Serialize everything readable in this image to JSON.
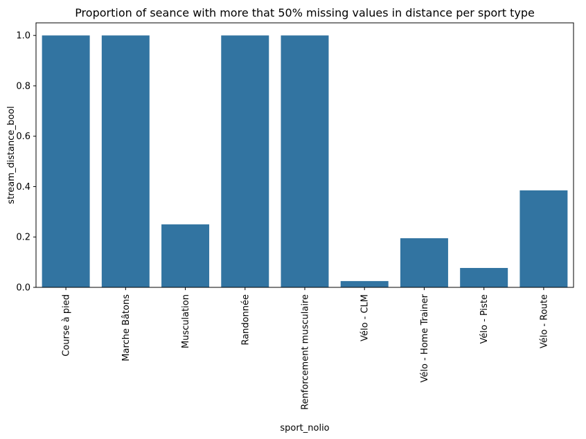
{
  "chart_data": {
    "type": "bar",
    "title": "Proportion of seance with more that 50% missing values in distance per sport type",
    "xlabel": "sport_nolio",
    "ylabel": "stream_distance_bool",
    "categories": [
      "Course à pied",
      "Marche Bâtons",
      "Musculation",
      "Randonnée",
      "Renforcement musculaire",
      "Vélo - CLM",
      "Vélo - Home Trainer",
      "Vélo - Piste",
      "Vélo - Route"
    ],
    "values": [
      1.0,
      1.0,
      0.25,
      1.0,
      1.0,
      0.025,
      0.195,
      0.077,
      0.385
    ],
    "ylim": [
      0,
      1.05
    ],
    "yticks": [
      0.0,
      0.2,
      0.4,
      0.6,
      0.8,
      1.0
    ],
    "ytick_labels": [
      "0.0",
      "0.2",
      "0.4",
      "0.6",
      "0.8",
      "1.0"
    ],
    "bar_color": "#3274a1",
    "grid": false,
    "legend": "none"
  }
}
